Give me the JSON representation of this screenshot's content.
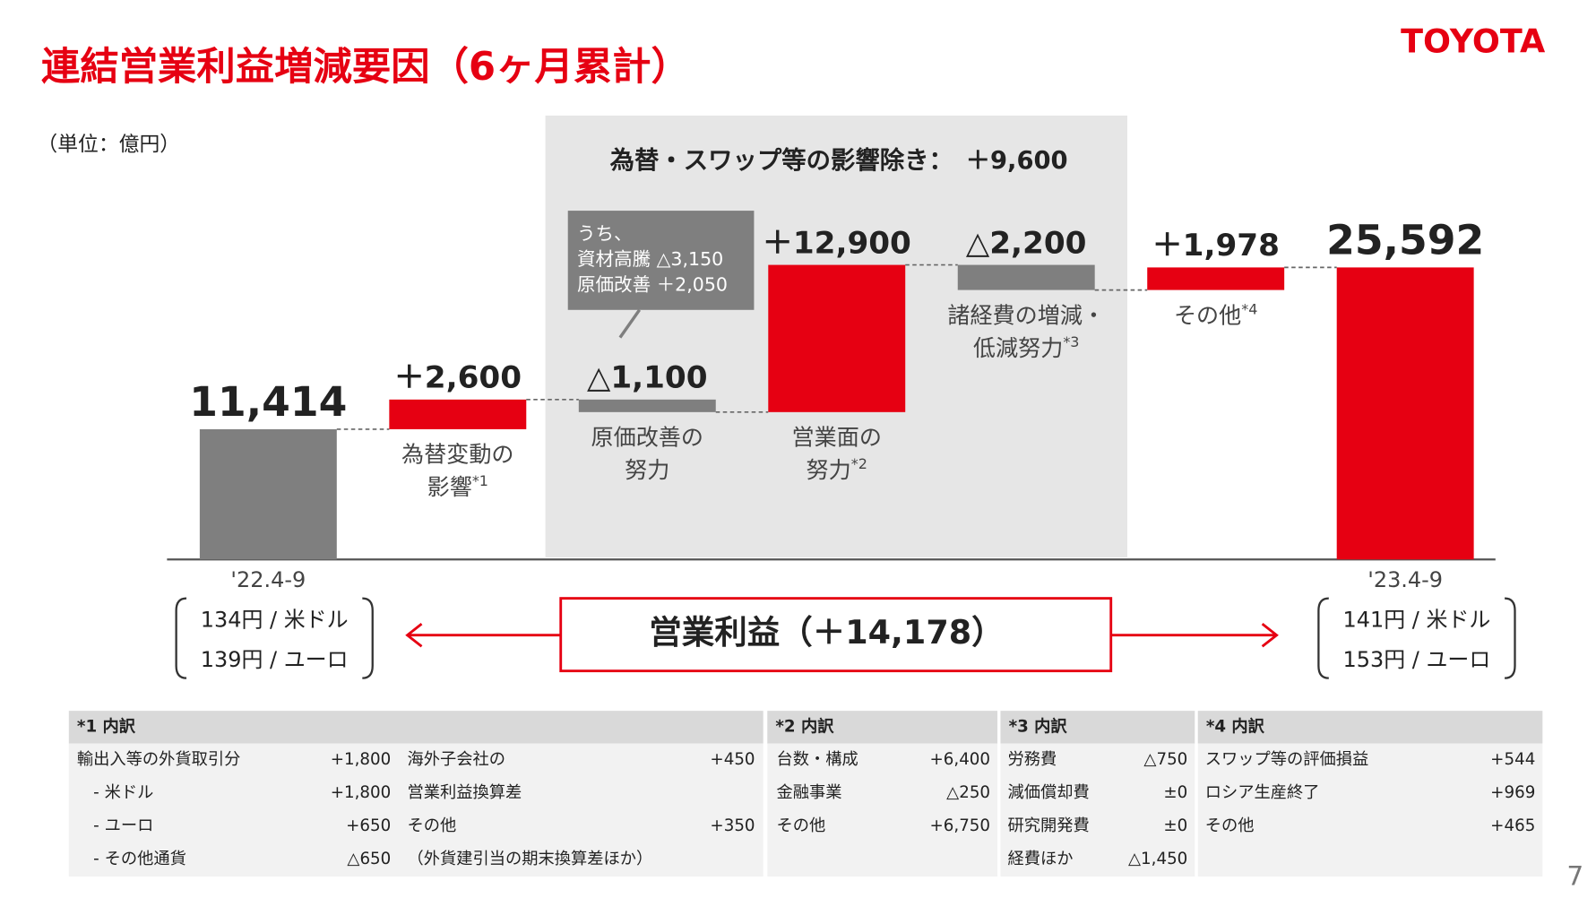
{
  "header": {
    "title": "連結営業利益増減要因（6ヶ月累計）",
    "logo": "TOYOTA",
    "unit": "（単位：億円）",
    "page": "7"
  },
  "chart_data": {
    "type": "waterfall",
    "categories": [
      [
        "'22.4-9"
      ],
      [
        "為替変動の",
        "影響"
      ],
      [
        "原価改善の",
        "努力"
      ],
      [
        "営業面の",
        "努力"
      ],
      [
        "諸経費の増減・",
        "低減努力"
      ],
      [
        "その他"
      ],
      [
        "'23.4-9"
      ]
    ],
    "category_notes": [
      null,
      "*1",
      null,
      "*2",
      "*3",
      "*4",
      null
    ],
    "values": [
      11414,
      2600,
      -1100,
      12900,
      -2200,
      1978,
      25592
    ],
    "value_labels": [
      "11,414",
      "＋2,600",
      "△1,100",
      "＋12,900",
      "△2,200",
      "＋1,978",
      "25,592"
    ],
    "total_bars": [
      0,
      6
    ],
    "colors": [
      "#7f7f7f",
      "#e60012",
      "#7f7f7f",
      "#e60012",
      "#7f7f7f",
      "#e60012",
      "#e60012"
    ]
  },
  "highlight": {
    "title": "為替・スワップ等の影響除き：　＋9,600",
    "callout": [
      "うち、",
      "資材高騰 △3,150",
      "原価改善 ＋2,050"
    ]
  },
  "rates": {
    "left": [
      "134円 / 米ドル",
      "139円 / ユーロ"
    ],
    "right": [
      "141円 / 米ドル",
      "153円 / ユーロ"
    ]
  },
  "summary": "営業利益（＋14,178）",
  "notes_tables": [
    {
      "title": "*1 内訳",
      "columns": [
        [
          {
            "label": "輸出入等の外貨取引分",
            "value": "+1,800"
          },
          {
            "label": "- 米ドル",
            "value": "+1,800"
          },
          {
            "label": "- ユーロ",
            "value": "+650"
          },
          {
            "label": "- その他通貨",
            "value": "△650"
          }
        ],
        [
          {
            "label": "海外子会社の",
            "value": "+450"
          },
          {
            "label": "営業利益換算差"
          },
          {
            "label": "その他",
            "value": "+350"
          },
          {
            "label": "（外貨建引当の期末換算差ほか）"
          }
        ]
      ]
    },
    {
      "title": "*2 内訳",
      "columns": [
        [
          {
            "label": "台数・構成",
            "value": "+6,400"
          },
          {
            "label": "金融事業",
            "value": "△250"
          },
          {
            "label": "その他",
            "value": "+6,750"
          }
        ]
      ]
    },
    {
      "title": "*3 内訳",
      "columns": [
        [
          {
            "label": "労務費",
            "value": "△750"
          },
          {
            "label": "減価償却費",
            "value": "±0"
          },
          {
            "label": "研究開発費",
            "value": "±0"
          },
          {
            "label": "経費ほか",
            "value": "△1,450"
          }
        ]
      ]
    },
    {
      "title": "*4 内訳",
      "columns": [
        [
          {
            "label": "スワップ等の評価損益",
            "value": "+544"
          },
          {
            "label": "ロシア生産終了",
            "value": "+969"
          },
          {
            "label": "その他",
            "value": "+465"
          }
        ]
      ]
    }
  ]
}
